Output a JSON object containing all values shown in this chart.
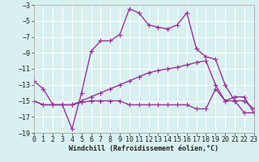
{
  "line1_x": [
    0,
    1,
    2,
    3,
    4,
    5,
    6,
    7,
    8,
    9,
    10,
    11,
    12,
    13,
    14,
    15,
    16,
    17,
    18,
    19,
    20,
    21,
    22,
    23
  ],
  "line1_y": [
    -12.5,
    -13.5,
    -15.5,
    -15.5,
    -18.5,
    -14.0,
    -8.8,
    -7.5,
    -7.5,
    -6.7,
    -3.5,
    -4.0,
    -5.5,
    -5.8,
    -6.0,
    -5.5,
    -4.0,
    -8.5,
    -9.5,
    -9.8,
    -13.0,
    -15.0,
    -15.0,
    -16.0
  ],
  "line2_x": [
    0,
    1,
    2,
    3,
    4,
    5,
    6,
    7,
    8,
    9,
    10,
    11,
    12,
    13,
    14,
    15,
    16,
    17,
    18,
    19,
    20,
    21,
    22,
    23
  ],
  "line2_y": [
    -15.0,
    -15.5,
    -15.5,
    -15.5,
    -15.5,
    -15.0,
    -14.5,
    -14.0,
    -13.5,
    -13.0,
    -12.5,
    -12.0,
    -11.5,
    -11.2,
    -11.0,
    -10.8,
    -10.5,
    -10.2,
    -10.0,
    -13.0,
    -15.0,
    -15.0,
    -16.5,
    -16.5
  ],
  "line3_x": [
    0,
    1,
    2,
    3,
    4,
    5,
    6,
    7,
    8,
    9,
    10,
    11,
    12,
    13,
    14,
    15,
    16,
    17,
    18,
    19,
    20,
    21,
    22,
    23
  ],
  "line3_y": [
    -15.0,
    -15.5,
    -15.5,
    -15.5,
    -15.5,
    -15.2,
    -15.0,
    -15.0,
    -15.0,
    -15.0,
    -15.5,
    -15.5,
    -15.5,
    -15.5,
    -15.5,
    -15.5,
    -15.5,
    -16.0,
    -16.0,
    -13.5,
    -15.0,
    -14.5,
    -14.5,
    -16.5
  ],
  "line_color": "#993399",
  "bg_color": "#d8f0f0",
  "grid_color": "#ffffff",
  "xlabel": "Windchill (Refroidissement éolien,°C)",
  "xlim": [
    0,
    23
  ],
  "ylim": [
    -19,
    -3
  ],
  "yticks": [
    -19,
    -17,
    -15,
    -13,
    -11,
    -9,
    -7,
    -5,
    -3
  ],
  "xticks": [
    0,
    1,
    2,
    3,
    4,
    5,
    6,
    7,
    8,
    9,
    10,
    11,
    12,
    13,
    14,
    15,
    16,
    17,
    18,
    19,
    20,
    21,
    22,
    23
  ],
  "marker": "+",
  "markersize": 4,
  "linewidth": 1.0,
  "tick_labelsize": 6,
  "xlabel_fontsize": 6
}
